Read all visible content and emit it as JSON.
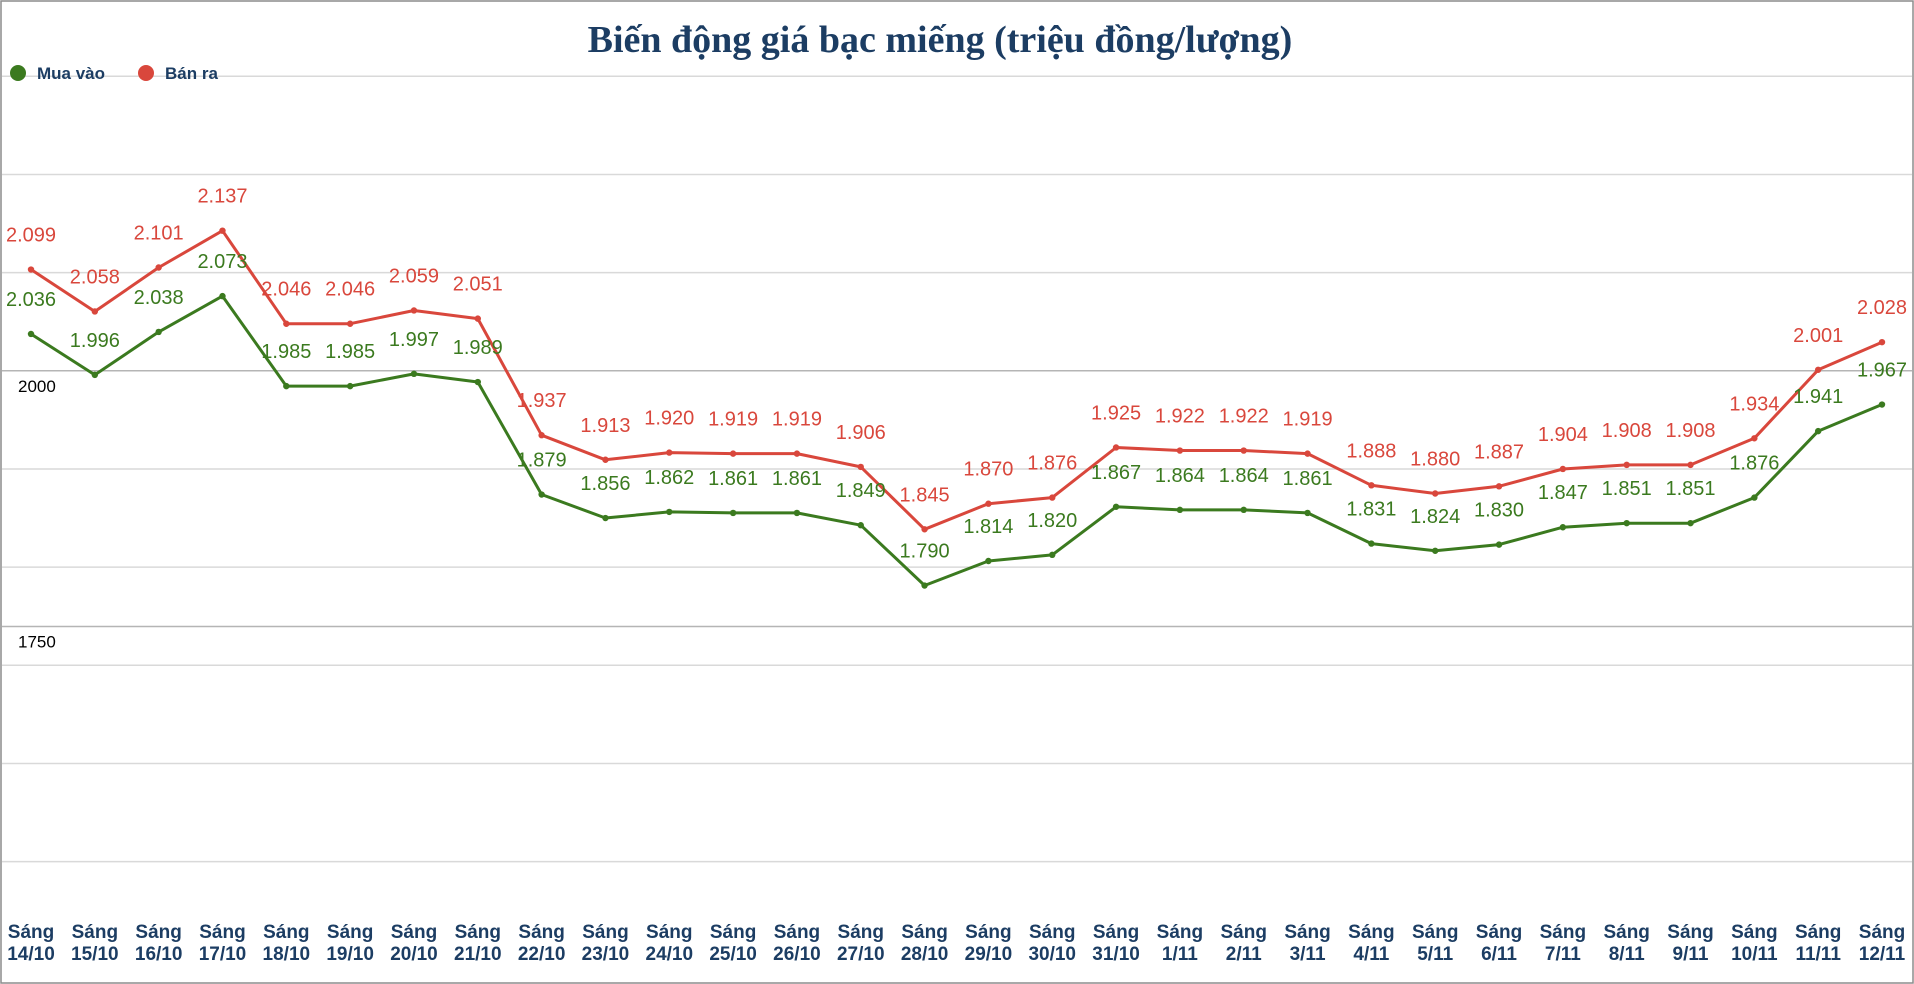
{
  "chart_data": {
    "type": "line",
    "title": "Biến động giá bạc miếng (triệu đồng/lượng)",
    "xlabel": "",
    "ylabel": "",
    "ylim": [
      1460,
      2300
    ],
    "y_ticks": [
      1750,
      2000
    ],
    "grid": true,
    "legend_position": "top-left",
    "categories": [
      [
        "Sáng",
        "14/10"
      ],
      [
        "Sáng",
        "15/10"
      ],
      [
        "Sáng",
        "16/10"
      ],
      [
        "Sáng",
        "17/10"
      ],
      [
        "Sáng",
        "18/10"
      ],
      [
        "Sáng",
        "19/10"
      ],
      [
        "Sáng",
        "20/10"
      ],
      [
        "Sáng",
        "21/10"
      ],
      [
        "Sáng",
        "22/10"
      ],
      [
        "Sáng",
        "23/10"
      ],
      [
        "Sáng",
        "24/10"
      ],
      [
        "Sáng",
        "25/10"
      ],
      [
        "Sáng",
        "26/10"
      ],
      [
        "Sáng",
        "27/10"
      ],
      [
        "Sáng",
        "28/10"
      ],
      [
        "Sáng",
        "29/10"
      ],
      [
        "Sáng",
        "30/10"
      ],
      [
        "Sáng",
        "31/10"
      ],
      [
        "Sáng",
        "1/11"
      ],
      [
        "Sáng",
        "2/11"
      ],
      [
        "Sáng",
        "3/11"
      ],
      [
        "Sáng",
        "4/11"
      ],
      [
        "Sáng",
        "5/11"
      ],
      [
        "Sáng",
        "6/11"
      ],
      [
        "Sáng",
        "7/11"
      ],
      [
        "Sáng",
        "8/11"
      ],
      [
        "Sáng",
        "9/11"
      ],
      [
        "Sáng",
        "10/11"
      ],
      [
        "Sáng",
        "11/11"
      ],
      [
        "Sáng",
        "12/11"
      ]
    ],
    "series": [
      {
        "name": "Mua vào",
        "color": "#3b7a1f",
        "values": [
          2036,
          1996,
          2038,
          2073,
          1985,
          1985,
          1997,
          1989,
          1879,
          1856,
          1862,
          1861,
          1861,
          1849,
          1790,
          1814,
          1820,
          1867,
          1864,
          1864,
          1861,
          1831,
          1824,
          1830,
          1847,
          1851,
          1851,
          1876,
          1941,
          1967
        ],
        "labels": [
          "2.036",
          "1.996",
          "2.038",
          "2.073",
          "1.985",
          "1.985",
          "1.997",
          "1.989",
          "1.879",
          "1.856",
          "1.862",
          "1.861",
          "1.861",
          "1.849",
          "1.790",
          "1.814",
          "1.820",
          "1.867",
          "1.864",
          "1.864",
          "1.861",
          "1.831",
          "1.824",
          "1.830",
          "1.847",
          "1.851",
          "1.851",
          "1.876",
          "1.941",
          "1.967"
        ]
      },
      {
        "name": "Bán ra",
        "color": "#d9473c",
        "values": [
          2099,
          2058,
          2101,
          2137,
          2046,
          2046,
          2059,
          2051,
          1937,
          1913,
          1920,
          1919,
          1919,
          1906,
          1845,
          1870,
          1876,
          1925,
          1922,
          1922,
          1919,
          1888,
          1880,
          1887,
          1904,
          1908,
          1908,
          1934,
          2001,
          2028
        ],
        "labels": [
          "2.099",
          "2.058",
          "2.101",
          "2.137",
          "2.046",
          "2.046",
          "2.059",
          "2.051",
          "1.937",
          "1.913",
          "1.920",
          "1.919",
          "1.919",
          "1.906",
          "1.845",
          "1.870",
          "1.876",
          "1.925",
          "1.922",
          "1.922",
          "1.919",
          "1.888",
          "1.880",
          "1.887",
          "1.904",
          "1.908",
          "1.908",
          "1.934",
          "2.001",
          "2.028"
        ]
      }
    ]
  }
}
